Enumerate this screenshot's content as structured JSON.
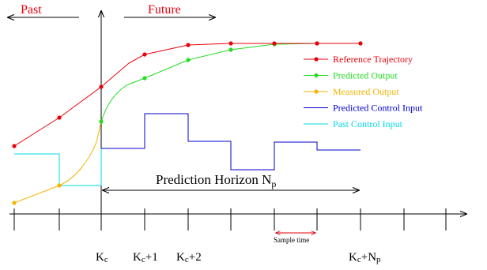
{
  "header": {
    "past": "Past",
    "future": "Future"
  },
  "legend": [
    {
      "label": "Reference Trajectory",
      "color": "#e8000b",
      "marker": "dot-line"
    },
    {
      "label": "Predicted Output",
      "color": "#22dd22",
      "marker": "dot-line"
    },
    {
      "label": "Measured Output",
      "color": "#f4b400",
      "marker": "dot-line"
    },
    {
      "label": "Predicted Control Input",
      "color": "#0000cc",
      "marker": "line"
    },
    {
      "label": "Past Control Input",
      "color": "#00d8e8",
      "marker": "line"
    }
  ],
  "horizon": {
    "label": "Prediction Horizon N",
    "subscript": "p"
  },
  "sample_time": "Sample time",
  "ticks": {
    "k": "K",
    "k_sub": "c",
    "k1_suffix": "+1",
    "k2_suffix": "+2",
    "np_suffix": "+N",
    "np_sub": "p"
  },
  "colors": {
    "reference": "#e8000b",
    "predicted_output": "#22dd22",
    "measured_output": "#f4b400",
    "predicted_control": "#0000cc",
    "past_control": "#00d8e8",
    "axis": "#000000"
  }
}
